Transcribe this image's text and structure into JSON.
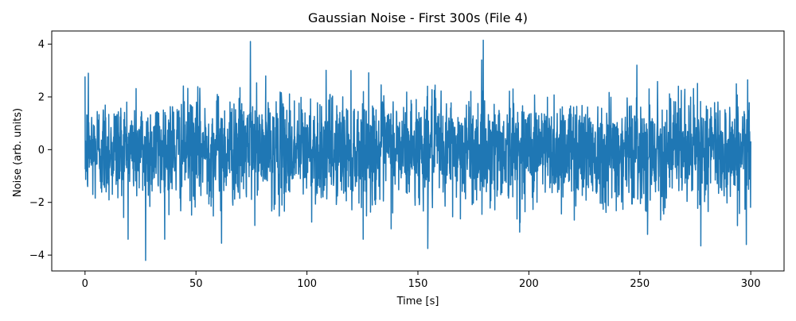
{
  "chart_data": {
    "type": "line",
    "title": "Gaussian Noise - First 300s (File 4)",
    "xlabel": "Time [s]",
    "ylabel": "Noise (arb. units)",
    "xlim": [
      -15,
      315
    ],
    "ylim": [
      -4.6,
      4.5
    ],
    "xticks": [
      0,
      50,
      100,
      150,
      200,
      250,
      300
    ],
    "yticks": [
      -4,
      -2,
      0,
      2,
      4
    ],
    "xtick_labels": [
      "0",
      "50",
      "100",
      "150",
      "200",
      "250",
      "300"
    ],
    "ytick_labels": [
      "−4",
      "−2",
      "0",
      "2",
      "4"
    ],
    "grid": false,
    "legend": false,
    "series": [
      {
        "color": "#1f77b4",
        "distribution": "gaussian",
        "mean": 0,
        "std": 1,
        "x_range": [
          0,
          300
        ],
        "n_points": 3000,
        "peaks": [
          {
            "x": 74.5,
            "y": 4.1
          },
          {
            "x": 179.5,
            "y": 4.15
          },
          {
            "x": 27.3,
            "y": -4.2
          },
          {
            "x": 154.5,
            "y": -3.75
          },
          {
            "x": 277.5,
            "y": -3.65
          },
          {
            "x": 298.0,
            "y": -3.6
          },
          {
            "x": 1.5,
            "y": 2.9
          },
          {
            "x": 61.5,
            "y": -3.55
          }
        ]
      }
    ]
  }
}
